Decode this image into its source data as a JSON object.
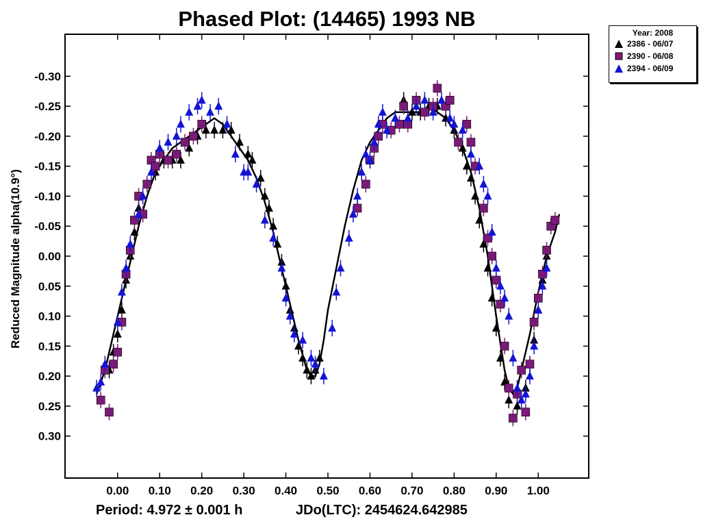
{
  "title": "Phased Plot: (14465) 1993 NB",
  "footer": {
    "period": "Period: 4.972 ± 0.001 h",
    "jdo": "JDo(LTC): 2454624.642985"
  },
  "legend": {
    "title": "Year: 2008",
    "entries": [
      {
        "label": "2386 - 06/07",
        "marker": "triangle",
        "color": "#000000"
      },
      {
        "label": "2390 - 06/08",
        "marker": "square",
        "color": "#7a1a78"
      },
      {
        "label": "2394 - 06/09",
        "marker": "triangle",
        "color": "#1414d4"
      }
    ]
  },
  "chart_data": {
    "type": "scatter",
    "title": "Phased Plot: (14465) 1993 NB",
    "xlabel": "",
    "ylabel": "Reduced Magnitude alpha(10.9°)",
    "xlim": [
      -0.125,
      1.12
    ],
    "ylim": [
      0.37,
      -0.37
    ],
    "y_inverted": true,
    "grid": false,
    "legend_position": "top-right",
    "x_ticks": [
      "0.00",
      "0.10",
      "0.20",
      "0.30",
      "0.40",
      "0.50",
      "0.60",
      "0.70",
      "0.80",
      "0.90",
      "1.00"
    ],
    "y_ticks": [
      "-0.30",
      "-0.25",
      "-0.20",
      "-0.15",
      "-0.10",
      "-0.05",
      "0.00",
      "0.05",
      "0.10",
      "0.15",
      "0.20",
      "0.25",
      "0.30"
    ],
    "series": [
      {
        "name": "2386 - 06/07",
        "marker": "triangle",
        "color": "#000000",
        "points": [
          [
            0.25,
            -0.21
          ],
          [
            0.27,
            -0.21
          ],
          [
            0.29,
            -0.19
          ],
          [
            0.31,
            -0.17
          ],
          [
            0.32,
            -0.16
          ],
          [
            0.34,
            -0.13
          ],
          [
            0.35,
            -0.1
          ],
          [
            0.36,
            -0.08
          ],
          [
            0.37,
            -0.05
          ],
          [
            0.38,
            -0.02
          ],
          [
            0.39,
            0.01
          ],
          [
            0.4,
            0.05
          ],
          [
            0.41,
            0.09
          ],
          [
            0.42,
            0.12
          ],
          [
            0.43,
            0.15
          ],
          [
            0.44,
            0.17
          ],
          [
            0.45,
            0.19
          ],
          [
            0.46,
            0.2
          ],
          [
            0.47,
            0.19
          ],
          [
            0.48,
            0.17
          ],
          [
            0.66,
            -0.23
          ],
          [
            0.68,
            -0.26
          ],
          [
            0.7,
            -0.24
          ],
          [
            0.72,
            -0.24
          ],
          [
            0.74,
            -0.25
          ],
          [
            0.76,
            -0.25
          ],
          [
            0.78,
            -0.23
          ],
          [
            0.8,
            -0.21
          ],
          [
            0.82,
            -0.18
          ],
          [
            0.83,
            -0.15
          ],
          [
            0.84,
            -0.13
          ],
          [
            0.85,
            -0.1
          ],
          [
            0.86,
            -0.06
          ],
          [
            0.87,
            -0.02
          ],
          [
            0.88,
            0.02
          ],
          [
            0.89,
            0.07
          ],
          [
            0.9,
            0.12
          ],
          [
            0.91,
            0.17
          ],
          [
            0.92,
            0.21
          ],
          [
            0.93,
            0.24
          ],
          [
            0.95,
            0.25
          ],
          [
            0.97,
            0.22
          ],
          [
            0.98,
            0.18
          ],
          [
            0.99,
            0.14
          ],
          [
            1.0,
            0.09
          ],
          [
            1.01,
            0.04
          ],
          [
            1.02,
            0.0
          ],
          [
            -0.02,
            0.19
          ],
          [
            -0.01,
            0.16
          ],
          [
            0.0,
            0.13
          ],
          [
            0.01,
            0.09
          ],
          [
            0.02,
            0.04
          ],
          [
            0.03,
            0.0
          ],
          [
            0.04,
            -0.04
          ],
          [
            0.05,
            -0.08
          ],
          [
            0.07,
            -0.12
          ],
          [
            0.09,
            -0.14
          ],
          [
            0.11,
            -0.16
          ],
          [
            0.13,
            -0.16
          ],
          [
            0.15,
            -0.16
          ],
          [
            0.17,
            -0.18
          ],
          [
            0.19,
            -0.2
          ],
          [
            0.21,
            -0.21
          ],
          [
            0.23,
            -0.21
          ]
        ]
      },
      {
        "name": "2390 - 06/08",
        "marker": "square",
        "color": "#7a1a78",
        "points": [
          [
            -0.04,
            0.24
          ],
          [
            -0.03,
            0.19
          ],
          [
            -0.02,
            0.26
          ],
          [
            -0.01,
            0.18
          ],
          [
            0.0,
            0.16
          ],
          [
            0.01,
            0.11
          ],
          [
            0.02,
            0.03
          ],
          [
            0.03,
            -0.01
          ],
          [
            0.04,
            -0.06
          ],
          [
            0.05,
            -0.1
          ],
          [
            0.06,
            -0.07
          ],
          [
            0.07,
            -0.12
          ],
          [
            0.08,
            -0.16
          ],
          [
            0.09,
            -0.15
          ],
          [
            0.1,
            -0.17
          ],
          [
            0.12,
            -0.16
          ],
          [
            0.14,
            -0.17
          ],
          [
            0.16,
            -0.19
          ],
          [
            0.18,
            -0.2
          ],
          [
            0.2,
            -0.22
          ],
          [
            0.57,
            -0.08
          ],
          [
            0.59,
            -0.12
          ],
          [
            0.6,
            -0.16
          ],
          [
            0.61,
            -0.18
          ],
          [
            0.62,
            -0.2
          ],
          [
            0.63,
            -0.22
          ],
          [
            0.65,
            -0.21
          ],
          [
            0.67,
            -0.22
          ],
          [
            0.68,
            -0.25
          ],
          [
            0.69,
            -0.22
          ],
          [
            0.71,
            -0.26
          ],
          [
            0.73,
            -0.24
          ],
          [
            0.75,
            -0.25
          ],
          [
            0.76,
            -0.28
          ],
          [
            0.78,
            -0.25
          ],
          [
            0.79,
            -0.26
          ],
          [
            0.81,
            -0.19
          ],
          [
            0.83,
            -0.22
          ],
          [
            0.84,
            -0.19
          ],
          [
            0.85,
            -0.15
          ],
          [
            0.87,
            -0.08
          ],
          [
            0.88,
            -0.03
          ],
          [
            0.89,
            0.0
          ],
          [
            0.9,
            0.04
          ],
          [
            0.91,
            0.08
          ],
          [
            0.92,
            0.15
          ],
          [
            0.93,
            0.22
          ],
          [
            0.94,
            0.27
          ],
          [
            0.95,
            0.23
          ],
          [
            0.96,
            0.19
          ],
          [
            0.97,
            0.26
          ],
          [
            0.98,
            0.18
          ],
          [
            0.99,
            0.11
          ],
          [
            1.0,
            0.07
          ],
          [
            1.01,
            0.03
          ],
          [
            1.02,
            -0.01
          ],
          [
            1.03,
            -0.05
          ],
          [
            1.04,
            -0.06
          ]
        ]
      },
      {
        "name": "2394 - 06/09",
        "marker": "triangle",
        "color": "#1414d4",
        "points": [
          [
            -0.05,
            0.22
          ],
          [
            -0.04,
            0.21
          ],
          [
            -0.03,
            0.18
          ],
          [
            0.0,
            0.11
          ],
          [
            0.01,
            0.06
          ],
          [
            0.02,
            0.02
          ],
          [
            0.03,
            -0.02
          ],
          [
            0.05,
            -0.07
          ],
          [
            0.06,
            -0.1
          ],
          [
            0.08,
            -0.14
          ],
          [
            0.1,
            -0.18
          ],
          [
            0.12,
            -0.19
          ],
          [
            0.14,
            -0.2
          ],
          [
            0.15,
            -0.22
          ],
          [
            0.17,
            -0.24
          ],
          [
            0.19,
            -0.25
          ],
          [
            0.2,
            -0.26
          ],
          [
            0.22,
            -0.24
          ],
          [
            0.24,
            -0.25
          ],
          [
            0.26,
            -0.22
          ],
          [
            0.28,
            -0.17
          ],
          [
            0.3,
            -0.14
          ],
          [
            0.31,
            -0.14
          ],
          [
            0.33,
            -0.12
          ],
          [
            0.35,
            -0.06
          ],
          [
            0.37,
            -0.03
          ],
          [
            0.39,
            0.02
          ],
          [
            0.4,
            0.07
          ],
          [
            0.41,
            0.1
          ],
          [
            0.42,
            0.13
          ],
          [
            0.44,
            0.14
          ],
          [
            0.46,
            0.17
          ],
          [
            0.47,
            0.18
          ],
          [
            0.49,
            0.2
          ],
          [
            0.51,
            0.12
          ],
          [
            0.52,
            0.06
          ],
          [
            0.53,
            0.02
          ],
          [
            0.55,
            -0.03
          ],
          [
            0.56,
            -0.07
          ],
          [
            0.57,
            -0.1
          ],
          [
            0.58,
            -0.14
          ],
          [
            0.59,
            -0.17
          ],
          [
            0.6,
            -0.16
          ],
          [
            0.61,
            -0.19
          ],
          [
            0.62,
            -0.22
          ],
          [
            0.63,
            -0.24
          ],
          [
            0.64,
            -0.21
          ],
          [
            0.66,
            -0.23
          ],
          [
            0.69,
            -0.23
          ],
          [
            0.71,
            -0.25
          ],
          [
            0.73,
            -0.26
          ],
          [
            0.75,
            -0.24
          ],
          [
            0.77,
            -0.26
          ],
          [
            0.79,
            -0.23
          ],
          [
            0.8,
            -0.22
          ],
          [
            0.82,
            -0.21
          ],
          [
            0.84,
            -0.17
          ],
          [
            0.86,
            -0.15
          ],
          [
            0.87,
            -0.12
          ],
          [
            0.88,
            -0.1
          ],
          [
            0.89,
            -0.04
          ],
          [
            0.9,
            0.02
          ],
          [
            0.91,
            0.05
          ],
          [
            0.92,
            0.07
          ],
          [
            0.93,
            0.1
          ],
          [
            0.94,
            0.17
          ],
          [
            0.95,
            0.22
          ],
          [
            0.96,
            0.24
          ],
          [
            0.97,
            0.23
          ],
          [
            0.98,
            0.2
          ],
          [
            0.99,
            0.15
          ],
          [
            1.0,
            0.09
          ],
          [
            1.01,
            0.05
          ],
          [
            1.02,
            0.02
          ]
        ]
      },
      {
        "name": "",
        "type": "line",
        "color": "#000000",
        "points": [
          [
            -0.05,
            0.23
          ],
          [
            -0.03,
            0.19
          ],
          [
            -0.01,
            0.13
          ],
          [
            0.01,
            0.07
          ],
          [
            0.03,
            0.01
          ],
          [
            0.05,
            -0.05
          ],
          [
            0.07,
            -0.1
          ],
          [
            0.09,
            -0.14
          ],
          [
            0.11,
            -0.16
          ],
          [
            0.13,
            -0.18
          ],
          [
            0.15,
            -0.19
          ],
          [
            0.17,
            -0.2
          ],
          [
            0.19,
            -0.21
          ],
          [
            0.21,
            -0.22
          ],
          [
            0.23,
            -0.23
          ],
          [
            0.25,
            -0.22
          ],
          [
            0.27,
            -0.2
          ],
          [
            0.29,
            -0.18
          ],
          [
            0.31,
            -0.16
          ],
          [
            0.33,
            -0.13
          ],
          [
            0.35,
            -0.09
          ],
          [
            0.37,
            -0.04
          ],
          [
            0.39,
            0.02
          ],
          [
            0.41,
            0.08
          ],
          [
            0.43,
            0.14
          ],
          [
            0.45,
            0.19
          ],
          [
            0.46,
            0.2
          ],
          [
            0.47,
            0.2
          ],
          [
            0.48,
            0.18
          ],
          [
            0.49,
            0.14
          ],
          [
            0.5,
            0.09
          ],
          [
            0.52,
            0.02
          ],
          [
            0.54,
            -0.05
          ],
          [
            0.56,
            -0.11
          ],
          [
            0.58,
            -0.16
          ],
          [
            0.6,
            -0.19
          ],
          [
            0.62,
            -0.21
          ],
          [
            0.64,
            -0.23
          ],
          [
            0.66,
            -0.24
          ],
          [
            0.68,
            -0.24
          ],
          [
            0.7,
            -0.24
          ],
          [
            0.72,
            -0.24
          ],
          [
            0.74,
            -0.25
          ],
          [
            0.76,
            -0.24
          ],
          [
            0.78,
            -0.23
          ],
          [
            0.8,
            -0.21
          ],
          [
            0.82,
            -0.18
          ],
          [
            0.84,
            -0.14
          ],
          [
            0.86,
            -0.08
          ],
          [
            0.88,
            0.0
          ],
          [
            0.9,
            0.1
          ],
          [
            0.92,
            0.19
          ],
          [
            0.93,
            0.22
          ],
          [
            0.94,
            0.23
          ],
          [
            0.95,
            0.22
          ],
          [
            0.96,
            0.19
          ],
          [
            0.98,
            0.13
          ],
          [
            1.0,
            0.06
          ],
          [
            1.02,
            0.0
          ],
          [
            1.04,
            -0.04
          ],
          [
            1.05,
            -0.07
          ]
        ]
      }
    ]
  }
}
